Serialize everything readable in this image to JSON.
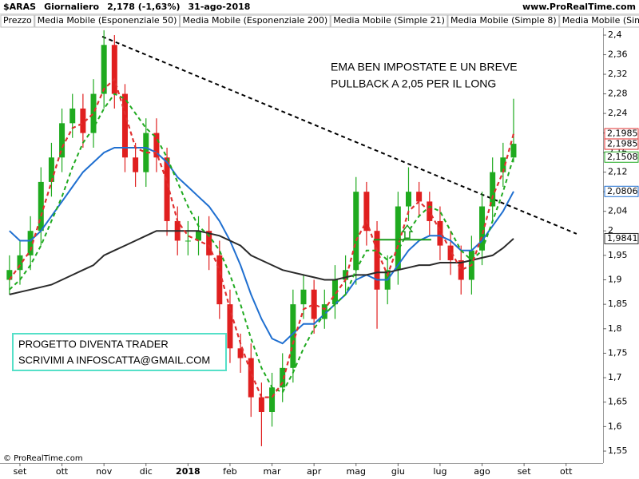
{
  "chart_data": {
    "type": "candlestick",
    "header": {
      "symbol": "$ARAS",
      "period": "Giornaliero",
      "price": "2,178 (-1,63%)",
      "date": "31-ago-2018"
    },
    "site": "www.ProRealTime.com",
    "copyright": "© ProRealTime.com",
    "annotation": [
      "EMA BEN IMPOSTATE E UN BREVE",
      "PULLBACK A 2,05 PER IL LONG"
    ],
    "note_box": [
      "PROGETTO DIVENTA TRADER",
      "SCRIVIMI A INFOSCATTA@GMAIL.COM"
    ],
    "xlim": [
      -0.475,
      13.88
    ],
    "xticks": [
      {
        "value": 0,
        "label": "set"
      },
      {
        "value": 1,
        "label": "ott"
      },
      {
        "value": 2,
        "label": "nov"
      },
      {
        "value": 3,
        "label": "dic"
      },
      {
        "value": 4,
        "label": "2018"
      },
      {
        "value": 5,
        "label": "feb"
      },
      {
        "value": 6,
        "label": "mar"
      },
      {
        "value": 7,
        "label": "apr"
      },
      {
        "value": 8,
        "label": "mag"
      },
      {
        "value": 9,
        "label": "giu"
      },
      {
        "value": 10,
        "label": "lug"
      },
      {
        "value": 11,
        "label": "ago"
      },
      {
        "value": 12,
        "label": "set"
      },
      {
        "value": 13,
        "label": "ott"
      }
    ],
    "ylim": [
      1.5256,
      2.4147
    ],
    "yticks": [
      {
        "value": 2.4,
        "label": "2,4"
      },
      {
        "value": 2.36,
        "label": "2,36"
      },
      {
        "value": 2.32,
        "label": "2,32"
      },
      {
        "value": 2.28,
        "label": "2,28"
      },
      {
        "value": 2.24,
        "label": "2,24"
      },
      {
        "value": 2.2,
        "label": "2,2"
      },
      {
        "value": 2.16,
        "label": "2,16"
      },
      {
        "value": 2.12,
        "label": "2,12"
      },
      {
        "value": 2.08,
        "label": "2,08"
      },
      {
        "value": 2.04,
        "label": "2,04"
      },
      2,
      {
        "value": 1.95,
        "label": "1,95"
      },
      {
        "value": 1.9,
        "label": "1,9"
      },
      {
        "value": 1.85,
        "label": "1,85"
      },
      {
        "value": 1.8,
        "label": "1,8"
      },
      {
        "value": 1.75,
        "label": "1,75"
      },
      {
        "value": 1.7,
        "label": "1,7"
      },
      {
        "value": 1.65,
        "label": "1,65"
      },
      {
        "value": 1.6,
        "label": "1,6"
      },
      {
        "value": 1.55,
        "label": "1,55"
      }
    ],
    "x": [
      -0.25,
      0,
      0.25,
      0.5,
      0.75,
      1,
      1.25,
      1.5,
      1.75,
      2,
      2.25,
      2.5,
      2.75,
      3,
      3.25,
      3.5,
      3.75,
      4,
      4.25,
      4.5,
      4.75,
      5,
      5.25,
      5.5,
      5.75,
      6,
      6.25,
      6.5,
      6.75,
      7,
      7.25,
      7.5,
      7.75,
      8,
      8.25,
      8.5,
      8.75,
      9,
      9.25,
      9.5,
      9.75,
      10,
      10.25,
      10.5,
      10.75,
      11,
      11.25,
      11.5,
      11.75
    ],
    "candles": {
      "name": "Prezzo",
      "up_color": "#1faa1f",
      "down_color": "#e01f1f",
      "open": [
        1.9,
        1.92,
        1.95,
        2.0,
        2.1,
        2.15,
        2.22,
        2.25,
        2.2,
        2.28,
        2.38,
        2.28,
        2.15,
        2.12,
        2.2,
        2.15,
        2.02,
        1.98,
        1.98,
        2.0,
        1.95,
        1.85,
        1.76,
        1.74,
        1.66,
        1.63,
        1.68,
        1.72,
        1.85,
        1.88,
        1.82,
        1.85,
        1.9,
        1.92,
        2.08,
        2.0,
        1.88,
        1.92,
        2.05,
        2.08,
        2.06,
        2.02,
        1.97,
        1.94,
        1.9,
        1.96,
        2.05,
        2.12,
        2.15
      ],
      "high": [
        1.95,
        1.98,
        2.03,
        2.13,
        2.18,
        2.25,
        2.28,
        2.28,
        2.31,
        2.41,
        2.4,
        2.3,
        2.18,
        2.23,
        2.23,
        2.17,
        2.05,
        2.02,
        2.03,
        2.03,
        1.98,
        1.88,
        1.79,
        1.77,
        1.69,
        1.71,
        1.75,
        1.88,
        1.91,
        1.9,
        1.88,
        1.93,
        1.95,
        2.11,
        2.1,
        2.02,
        1.95,
        2.08,
        2.13,
        2.1,
        2.08,
        2.05,
        2.0,
        1.97,
        1.99,
        2.08,
        2.15,
        2.18,
        2.27
      ],
      "low": [
        1.87,
        1.89,
        1.92,
        1.97,
        2.07,
        2.12,
        2.19,
        2.17,
        2.17,
        2.25,
        2.25,
        2.12,
        2.09,
        2.09,
        2.12,
        1.99,
        1.95,
        1.95,
        1.95,
        1.92,
        1.82,
        1.73,
        1.71,
        1.62,
        1.56,
        1.6,
        1.65,
        1.69,
        1.82,
        1.79,
        1.8,
        1.82,
        1.87,
        1.89,
        1.97,
        1.8,
        1.85,
        1.89,
        2.02,
        2.03,
        1.99,
        1.94,
        1.91,
        1.87,
        1.87,
        1.93,
        2.02,
        2.09,
        2.14
      ],
      "close": [
        1.92,
        1.95,
        2.0,
        2.1,
        2.15,
        2.22,
        2.25,
        2.2,
        2.28,
        2.38,
        2.28,
        2.15,
        2.12,
        2.2,
        2.15,
        2.02,
        1.98,
        1.98,
        2.0,
        1.95,
        1.85,
        1.76,
        1.74,
        1.66,
        1.63,
        1.68,
        1.72,
        1.85,
        1.88,
        1.82,
        1.85,
        1.9,
        1.92,
        2.08,
        2.0,
        1.88,
        1.92,
        2.05,
        2.08,
        2.06,
        2.02,
        1.97,
        1.94,
        1.9,
        1.96,
        2.05,
        2.12,
        2.15,
        2.178
      ]
    },
    "series": [
      {
        "name": "Media Mobile (Esponenziale 50)",
        "color": "#1f6fd0",
        "dashed": false,
        "tag": "2,0806",
        "values": [
          2.0,
          1.98,
          1.98,
          2.0,
          2.03,
          2.06,
          2.09,
          2.12,
          2.14,
          2.16,
          2.17,
          2.17,
          2.17,
          2.17,
          2.16,
          2.14,
          2.11,
          2.09,
          2.07,
          2.05,
          2.02,
          1.98,
          1.93,
          1.87,
          1.82,
          1.78,
          1.77,
          1.79,
          1.81,
          1.81,
          1.83,
          1.85,
          1.87,
          1.9,
          1.91,
          1.9,
          1.9,
          1.93,
          1.96,
          1.98,
          1.99,
          1.99,
          1.98,
          1.96,
          1.96,
          1.98,
          2.01,
          2.04,
          2.0806
        ]
      },
      {
        "name": "Media Mobile (Esponenziale 200)",
        "color": "#2a2a2a",
        "dashed": false,
        "tag": "1,9841",
        "values": [
          1.87,
          1.875,
          1.88,
          1.885,
          1.89,
          1.9,
          1.91,
          1.92,
          1.93,
          1.95,
          1.96,
          1.97,
          1.98,
          1.99,
          2.0,
          2.0,
          2.0,
          2.0,
          2.0,
          1.995,
          1.99,
          1.98,
          1.97,
          1.95,
          1.94,
          1.93,
          1.92,
          1.915,
          1.91,
          1.905,
          1.9,
          1.9,
          1.905,
          1.91,
          1.91,
          1.915,
          1.915,
          1.92,
          1.925,
          1.93,
          1.93,
          1.935,
          1.935,
          1.935,
          1.94,
          1.945,
          1.95,
          1.965,
          1.9841
        ]
      },
      {
        "name": "Media Mobile (Simple 21)",
        "color": "#1faa1f",
        "dashed": true,
        "tag": "2,1508",
        "values": [
          1.88,
          1.9,
          1.93,
          1.97,
          2.02,
          2.07,
          2.13,
          2.18,
          2.21,
          2.25,
          2.28,
          2.27,
          2.24,
          2.21,
          2.19,
          2.15,
          2.1,
          2.05,
          2.01,
          1.99,
          1.96,
          1.91,
          1.85,
          1.78,
          1.72,
          1.68,
          1.67,
          1.71,
          1.76,
          1.8,
          1.83,
          1.85,
          1.87,
          1.92,
          1.96,
          1.96,
          1.94,
          1.96,
          2.0,
          2.03,
          2.05,
          2.04,
          2.0,
          1.96,
          1.94,
          1.96,
          2.02,
          2.08,
          2.1508
        ]
      },
      {
        "name": "Media Mobile (Simple 8)",
        "color": "#e03030",
        "dashed": true,
        "tag": "2,1985",
        "values": [
          1.9,
          1.93,
          1.96,
          2.03,
          2.1,
          2.17,
          2.21,
          2.22,
          2.24,
          2.29,
          2.31,
          2.24,
          2.17,
          2.16,
          2.16,
          2.1,
          2.02,
          1.99,
          1.98,
          1.97,
          1.92,
          1.84,
          1.77,
          1.71,
          1.66,
          1.66,
          1.69,
          1.77,
          1.84,
          1.85,
          1.84,
          1.87,
          1.9,
          1.98,
          2.02,
          1.96,
          1.91,
          1.97,
          2.04,
          2.06,
          2.04,
          2.0,
          1.96,
          1.92,
          1.93,
          1.99,
          2.07,
          2.12,
          2.1985
        ]
      },
      {
        "name": "Media Mobile (Simple 8)",
        "color": "#e03030",
        "dashed": true,
        "tag": "2,1985",
        "values": [
          1.9,
          1.93,
          1.96,
          2.03,
          2.1,
          2.17,
          2.21,
          2.22,
          2.24,
          2.29,
          2.31,
          2.24,
          2.17,
          2.16,
          2.16,
          2.1,
          2.02,
          1.99,
          1.98,
          1.97,
          1.92,
          1.84,
          1.77,
          1.71,
          1.66,
          1.66,
          1.69,
          1.77,
          1.84,
          1.85,
          1.84,
          1.87,
          1.9,
          1.98,
          2.02,
          1.96,
          1.91,
          1.97,
          2.04,
          2.06,
          2.04,
          2.0,
          1.96,
          1.92,
          1.93,
          1.99,
          2.07,
          2.12,
          2.1985
        ]
      }
    ],
    "trendline": {
      "x": [
        1.96,
        13.25
      ],
      "y": [
        2.397,
        1.994
      ]
    },
    "support": {
      "x": [
        8.42,
        9.79
      ],
      "y": 1.982,
      "arrow_x": 9.22
    }
  }
}
